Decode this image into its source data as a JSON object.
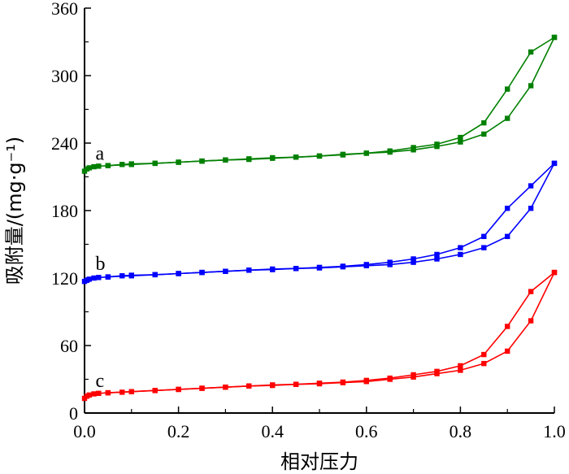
{
  "chart_data": {
    "type": "line",
    "xlabel": "相对压力",
    "ylabel": "吸附量/(mg·g⁻¹)",
    "xlim": [
      0,
      1.0
    ],
    "ylim": [
      0,
      360
    ],
    "x_ticks": [
      "0.0",
      "0.2",
      "0.4",
      "0.6",
      "0.8",
      "1.0"
    ],
    "x_tick_values": [
      0,
      0.2,
      0.4,
      0.6,
      0.8,
      1.0
    ],
    "y_ticks": [
      "0",
      "60",
      "120",
      "180",
      "240",
      "300",
      "360"
    ],
    "y_tick_values": [
      0,
      60,
      120,
      180,
      240,
      300,
      360
    ],
    "grid": false,
    "series": [
      {
        "label": "a",
        "color": "#008000",
        "adsorption": [
          [
            0.0,
            215
          ],
          [
            0.005,
            217
          ],
          [
            0.01,
            218
          ],
          [
            0.02,
            219
          ],
          [
            0.03,
            219.5
          ],
          [
            0.05,
            220
          ],
          [
            0.08,
            221
          ],
          [
            0.1,
            221.5
          ],
          [
            0.15,
            222
          ],
          [
            0.2,
            223
          ],
          [
            0.25,
            224
          ],
          [
            0.3,
            225
          ],
          [
            0.35,
            226
          ],
          [
            0.4,
            227
          ],
          [
            0.45,
            227.5
          ],
          [
            0.5,
            228.5
          ],
          [
            0.55,
            230
          ],
          [
            0.6,
            231
          ],
          [
            0.65,
            232
          ],
          [
            0.7,
            234
          ],
          [
            0.75,
            237
          ],
          [
            0.8,
            241
          ],
          [
            0.85,
            248
          ],
          [
            0.9,
            262
          ],
          [
            0.95,
            291
          ],
          [
            1.0,
            334
          ]
        ],
        "desorption": [
          [
            1.0,
            334
          ],
          [
            0.95,
            321
          ],
          [
            0.9,
            288
          ],
          [
            0.85,
            258
          ],
          [
            0.8,
            245
          ],
          [
            0.75,
            239
          ],
          [
            0.7,
            236
          ],
          [
            0.65,
            233
          ],
          [
            0.6,
            231
          ],
          [
            0.55,
            229.5
          ],
          [
            0.5,
            228.5
          ],
          [
            0.45,
            227.5
          ],
          [
            0.4,
            226.5
          ],
          [
            0.35,
            225.5
          ],
          [
            0.3,
            225
          ],
          [
            0.25,
            224
          ],
          [
            0.2,
            223
          ],
          [
            0.15,
            222
          ],
          [
            0.1,
            221
          ],
          [
            0.05,
            220
          ]
        ]
      },
      {
        "label": "b",
        "color": "#0000ff",
        "adsorption": [
          [
            0.0,
            117
          ],
          [
            0.005,
            118
          ],
          [
            0.01,
            119
          ],
          [
            0.02,
            120
          ],
          [
            0.03,
            120.5
          ],
          [
            0.05,
            121
          ],
          [
            0.08,
            122
          ],
          [
            0.1,
            122.5
          ],
          [
            0.15,
            123
          ],
          [
            0.2,
            124
          ],
          [
            0.25,
            125
          ],
          [
            0.3,
            126
          ],
          [
            0.35,
            127
          ],
          [
            0.4,
            128
          ],
          [
            0.45,
            128.5
          ],
          [
            0.5,
            129
          ],
          [
            0.55,
            130
          ],
          [
            0.6,
            131
          ],
          [
            0.65,
            132
          ],
          [
            0.7,
            134
          ],
          [
            0.75,
            137
          ],
          [
            0.8,
            141
          ],
          [
            0.85,
            147
          ],
          [
            0.9,
            157
          ],
          [
            0.95,
            182
          ],
          [
            1.0,
            222
          ]
        ],
        "desorption": [
          [
            1.0,
            222
          ],
          [
            0.95,
            202
          ],
          [
            0.9,
            182
          ],
          [
            0.85,
            157
          ],
          [
            0.8,
            147
          ],
          [
            0.75,
            141
          ],
          [
            0.7,
            137
          ],
          [
            0.65,
            134
          ],
          [
            0.6,
            132
          ],
          [
            0.55,
            130.5
          ],
          [
            0.5,
            129.5
          ],
          [
            0.45,
            128.5
          ],
          [
            0.4,
            127.5
          ],
          [
            0.35,
            127
          ],
          [
            0.3,
            126
          ],
          [
            0.25,
            125
          ],
          [
            0.2,
            124
          ],
          [
            0.15,
            123
          ],
          [
            0.1,
            122
          ],
          [
            0.05,
            121
          ]
        ]
      },
      {
        "label": "c",
        "color": "#ff0000",
        "adsorption": [
          [
            0.0,
            13
          ],
          [
            0.005,
            15
          ],
          [
            0.01,
            16
          ],
          [
            0.02,
            17
          ],
          [
            0.03,
            17.5
          ],
          [
            0.05,
            18
          ],
          [
            0.08,
            18.5
          ],
          [
            0.1,
            19
          ],
          [
            0.15,
            20
          ],
          [
            0.2,
            21
          ],
          [
            0.25,
            22
          ],
          [
            0.3,
            23
          ],
          [
            0.35,
            24
          ],
          [
            0.4,
            25
          ],
          [
            0.45,
            25.5
          ],
          [
            0.5,
            26
          ],
          [
            0.55,
            27
          ],
          [
            0.6,
            28
          ],
          [
            0.65,
            30
          ],
          [
            0.7,
            32
          ],
          [
            0.75,
            35
          ],
          [
            0.8,
            38
          ],
          [
            0.85,
            44
          ],
          [
            0.9,
            55
          ],
          [
            0.95,
            82
          ],
          [
            1.0,
            125
          ]
        ],
        "desorption": [
          [
            1.0,
            125
          ],
          [
            0.95,
            108
          ],
          [
            0.9,
            77
          ],
          [
            0.85,
            52
          ],
          [
            0.8,
            42
          ],
          [
            0.75,
            37
          ],
          [
            0.7,
            34
          ],
          [
            0.65,
            31
          ],
          [
            0.6,
            29
          ],
          [
            0.55,
            27.5
          ],
          [
            0.5,
            26.5
          ],
          [
            0.45,
            25.5
          ],
          [
            0.4,
            24.5
          ],
          [
            0.35,
            24
          ],
          [
            0.3,
            23
          ],
          [
            0.25,
            22
          ],
          [
            0.2,
            21
          ],
          [
            0.15,
            20
          ],
          [
            0.1,
            19
          ],
          [
            0.05,
            18
          ]
        ]
      }
    ]
  }
}
